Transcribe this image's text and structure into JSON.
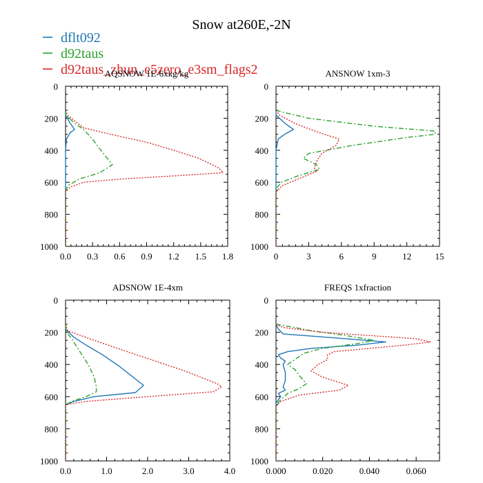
{
  "title": "Snow at260E,-2N",
  "legend": [
    {
      "name": "dflt092",
      "color": "#1f77b4",
      "dash": "solid"
    },
    {
      "name": "d92taus",
      "color": "#2ca02c",
      "dash": "dashdot"
    },
    {
      "name": "d92taus_zhun_e5zero_e3sm_flags2",
      "color": "#d62728",
      "dash": "dot"
    }
  ],
  "chart_data": [
    {
      "type": "line",
      "title": "AQSNOW  1E-6xkg/kg",
      "xlim": [
        0,
        1.8
      ],
      "ylim": [
        1000,
        0
      ],
      "xticks": [
        0,
        0.3,
        0.6,
        0.9,
        1.2,
        1.5,
        1.8
      ],
      "xticklabels": [
        "0.0",
        "0.3",
        "0.6",
        "0.9",
        "1.2",
        "1.5",
        "1.8"
      ],
      "yticks": [
        0,
        200,
        400,
        600,
        800,
        1000
      ],
      "yticklabels": [
        "0",
        "200",
        "400",
        "600",
        "800",
        "1000"
      ],
      "series": [
        {
          "name": "dflt092",
          "points": [
            [
              0,
              150
            ],
            [
              0,
              180
            ],
            [
              0.05,
              230
            ],
            [
              0.1,
              270
            ],
            [
              0.05,
              290
            ],
            [
              0.01,
              330
            ],
            [
              0,
              400
            ],
            [
              0,
              600
            ],
            [
              0,
              700
            ],
            [
              0,
              1000
            ]
          ]
        },
        {
          "name": "d92taus",
          "points": [
            [
              0,
              150
            ],
            [
              0,
              180
            ],
            [
              0.1,
              230
            ],
            [
              0.2,
              270
            ],
            [
              0.3,
              330
            ],
            [
              0.35,
              370
            ],
            [
              0.42,
              420
            ],
            [
              0.52,
              490
            ],
            [
              0.38,
              540
            ],
            [
              0.15,
              580
            ],
            [
              0.03,
              620
            ],
            [
              0,
              650
            ],
            [
              0,
              1000
            ]
          ]
        },
        {
          "name": "d92taus_zhun_e5zero_e3sm_flags2",
          "points": [
            [
              0,
              150
            ],
            [
              0.02,
              180
            ],
            [
              0.2,
              260
            ],
            [
              0.5,
              300
            ],
            [
              0.9,
              350
            ],
            [
              1.2,
              400
            ],
            [
              1.48,
              450
            ],
            [
              1.7,
              510
            ],
            [
              1.75,
              540
            ],
            [
              1.2,
              560
            ],
            [
              0.6,
              580
            ],
            [
              0.2,
              600
            ],
            [
              0.05,
              630
            ],
            [
              0,
              660
            ],
            [
              0,
              1000
            ]
          ]
        }
      ]
    },
    {
      "type": "line",
      "title": "ANSNOW  1xm-3",
      "xlim": [
        0,
        15
      ],
      "ylim": [
        1000,
        0
      ],
      "xticks": [
        0,
        3,
        6,
        9,
        12,
        15
      ],
      "xticklabels": [
        "0",
        "3",
        "6",
        "9",
        "12",
        "15"
      ],
      "yticks": [
        0,
        200,
        400,
        600,
        800,
        1000
      ],
      "yticklabels": [
        "0",
        "200",
        "400",
        "600",
        "800",
        "1000"
      ],
      "series": [
        {
          "name": "dflt092",
          "points": [
            [
              0,
              150
            ],
            [
              0,
              180
            ],
            [
              0.8,
              230
            ],
            [
              1.6,
              270
            ],
            [
              0.8,
              300
            ],
            [
              0.2,
              330
            ],
            [
              0,
              400
            ],
            [
              0,
              1000
            ]
          ]
        },
        {
          "name": "d92taus",
          "points": [
            [
              0,
              150
            ],
            [
              0.5,
              160
            ],
            [
              3,
              200
            ],
            [
              9,
              250
            ],
            [
              14.6,
              280
            ],
            [
              14.6,
              300
            ],
            [
              12,
              320
            ],
            [
              7,
              370
            ],
            [
              3,
              420
            ],
            [
              2.5,
              450
            ],
            [
              3.7,
              490
            ],
            [
              4,
              520
            ],
            [
              2,
              560
            ],
            [
              0.5,
              600
            ],
            [
              0,
              640
            ],
            [
              0,
              1000
            ]
          ]
        },
        {
          "name": "d92taus_zhun_e5zero_e3sm_flags2",
          "points": [
            [
              0,
              150
            ],
            [
              0.3,
              180
            ],
            [
              2,
              240
            ],
            [
              4,
              290
            ],
            [
              5.8,
              330
            ],
            [
              5.5,
              370
            ],
            [
              4.2,
              420
            ],
            [
              3.8,
              460
            ],
            [
              3.5,
              510
            ],
            [
              3.8,
              530
            ],
            [
              2,
              580
            ],
            [
              0.6,
              620
            ],
            [
              0,
              660
            ],
            [
              0,
              1000
            ]
          ]
        }
      ]
    },
    {
      "type": "line",
      "title": "ADSNOW  1E-4xm",
      "xlim": [
        0,
        4
      ],
      "ylim": [
        1000,
        0
      ],
      "xticks": [
        0,
        1,
        2,
        3,
        4
      ],
      "xticklabels": [
        "0.0",
        "1.0",
        "2.0",
        "3.0",
        "4.0"
      ],
      "yticks": [
        0,
        200,
        400,
        600,
        800,
        1000
      ],
      "yticklabels": [
        "0",
        "200",
        "400",
        "600",
        "800",
        "1000"
      ],
      "series": [
        {
          "name": "dflt092",
          "points": [
            [
              0,
              150
            ],
            [
              0,
              180
            ],
            [
              0.2,
              230
            ],
            [
              0.5,
              280
            ],
            [
              0.9,
              340
            ],
            [
              1.3,
              410
            ],
            [
              1.65,
              480
            ],
            [
              1.9,
              530
            ],
            [
              1.7,
              575
            ],
            [
              0.7,
              600
            ],
            [
              0.2,
              630
            ],
            [
              0,
              650
            ],
            [
              0,
              1000
            ]
          ]
        },
        {
          "name": "d92taus",
          "points": [
            [
              0,
              150
            ],
            [
              0,
              190
            ],
            [
              0.15,
              240
            ],
            [
              0.35,
              320
            ],
            [
              0.55,
              400
            ],
            [
              0.7,
              480
            ],
            [
              0.75,
              540
            ],
            [
              0.75,
              570
            ],
            [
              0.5,
              600
            ],
            [
              0.15,
              630
            ],
            [
              0,
              650
            ],
            [
              0,
              1000
            ]
          ]
        },
        {
          "name": "d92taus_zhun_e5zero_e3sm_flags2",
          "points": [
            [
              0,
              150
            ],
            [
              0.05,
              190
            ],
            [
              0.7,
              250
            ],
            [
              1.5,
              320
            ],
            [
              2.2,
              380
            ],
            [
              2.9,
              440
            ],
            [
              3.4,
              490
            ],
            [
              3.7,
              520
            ],
            [
              3.8,
              540
            ],
            [
              3.6,
              570
            ],
            [
              2.0,
              600
            ],
            [
              0.5,
              630
            ],
            [
              0,
              650
            ],
            [
              0,
              1000
            ]
          ]
        }
      ]
    },
    {
      "type": "line",
      "title": "FREQS  1xfraction",
      "xlim": [
        0,
        0.07
      ],
      "ylim": [
        1000,
        0
      ],
      "xticks": [
        0,
        0.02,
        0.04,
        0.06
      ],
      "xticklabels": [
        "0.000",
        "0.020",
        "0.040",
        "0.060"
      ],
      "yticks": [
        0,
        200,
        400,
        600,
        800,
        1000
      ],
      "yticklabels": [
        "0",
        "200",
        "400",
        "600",
        "800",
        "1000"
      ],
      "series": [
        {
          "name": "dflt092",
          "points": [
            [
              0,
              150
            ],
            [
              0.001,
              180
            ],
            [
              0.003,
              210
            ],
            [
              0.03,
              240
            ],
            [
              0.047,
              260
            ],
            [
              0.035,
              280
            ],
            [
              0.015,
              300
            ],
            [
              0.005,
              320
            ],
            [
              0.001,
              340
            ],
            [
              0.002,
              360
            ],
            [
              0.004,
              380
            ],
            [
              0.003,
              400
            ],
            [
              0.004,
              450
            ],
            [
              0.004,
              500
            ],
            [
              0.003,
              540
            ],
            [
              0.004,
              560
            ],
            [
              0.001,
              580
            ],
            [
              0.002,
              600
            ],
            [
              0,
              640
            ],
            [
              0,
              1000
            ]
          ]
        },
        {
          "name": "d92taus",
          "points": [
            [
              0,
              150
            ],
            [
              0.008,
              170
            ],
            [
              0.015,
              190
            ],
            [
              0.03,
              220
            ],
            [
              0.042,
              250
            ],
            [
              0.035,
              270
            ],
            [
              0.02,
              300
            ],
            [
              0.012,
              330
            ],
            [
              0.008,
              370
            ],
            [
              0.005,
              400
            ],
            [
              0.008,
              430
            ],
            [
              0.01,
              470
            ],
            [
              0.013,
              520
            ],
            [
              0.01,
              550
            ],
            [
              0.005,
              580
            ],
            [
              0.002,
              620
            ],
            [
              0,
              650
            ],
            [
              0,
              1000
            ]
          ]
        },
        {
          "name": "d92taus_zhun_e5zero_e3sm_flags2",
          "points": [
            [
              0,
              150
            ],
            [
              0.003,
              170
            ],
            [
              0.02,
              200
            ],
            [
              0.06,
              240
            ],
            [
              0.066,
              260
            ],
            [
              0.055,
              280
            ],
            [
              0.04,
              300
            ],
            [
              0.025,
              320
            ],
            [
              0.022,
              340
            ],
            [
              0.022,
              370
            ],
            [
              0.018,
              400
            ],
            [
              0.015,
              440
            ],
            [
              0.02,
              480
            ],
            [
              0.031,
              530
            ],
            [
              0.027,
              560
            ],
            [
              0.01,
              590
            ],
            [
              0.002,
              630
            ],
            [
              0,
              660
            ],
            [
              0,
              1000
            ]
          ]
        }
      ]
    }
  ]
}
